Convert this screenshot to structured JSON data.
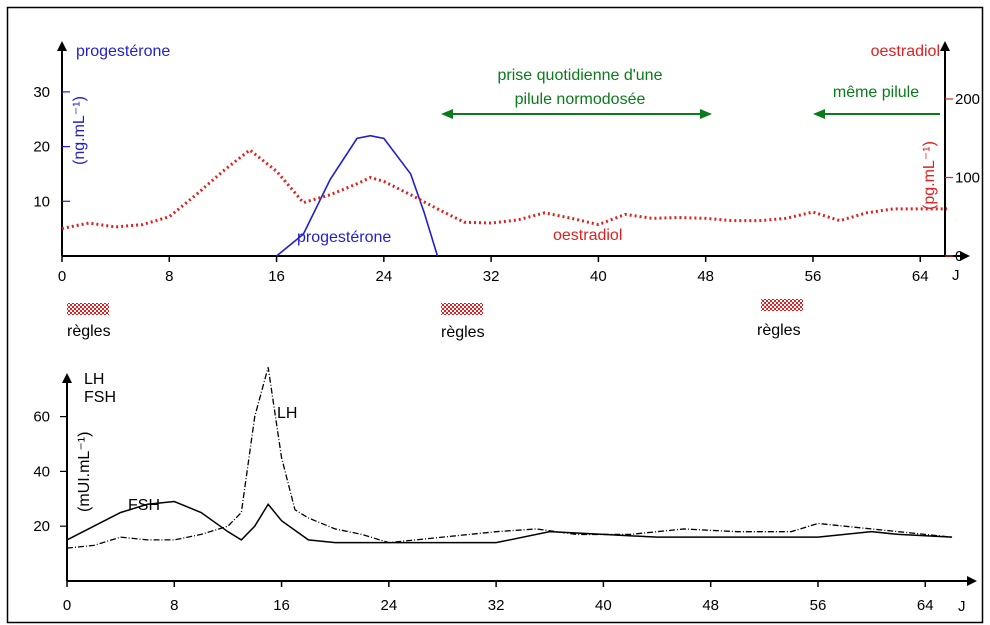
{
  "colors": {
    "progesterone": "#1f1fd0",
    "oestradiol": "#e02020",
    "annotation": "#0a7a1a",
    "axis": "#000000",
    "lh_fsh": "#000000"
  },
  "chart_data": [
    {
      "type": "line",
      "xlabel": "J",
      "xlim": [
        0,
        66
      ],
      "x_ticks": [
        "0",
        "8",
        "16",
        "24",
        "32",
        "40",
        "48",
        "56",
        "64"
      ],
      "left_axis": {
        "label": "progestérone",
        "unit": "(ng.mL⁻¹)",
        "ylim": [
          0,
          36
        ],
        "ticks": [
          "10",
          "20",
          "30"
        ]
      },
      "right_axis": {
        "label": "oestradiol",
        "unit": "(pg.mL⁻¹)",
        "ylim": [
          0,
          240
        ],
        "ticks": [
          "0",
          "100",
          "200"
        ]
      },
      "series": [
        {
          "name": "progestérone",
          "axis": "left",
          "x": [
            16,
            18,
            20,
            22,
            23,
            24,
            26,
            27,
            28
          ],
          "y": [
            0,
            4,
            14,
            21.5,
            22,
            21.5,
            15,
            8,
            0
          ]
        },
        {
          "name": "oestradiol",
          "axis": "right",
          "x": [
            0,
            2,
            4,
            6,
            8,
            10,
            12,
            14,
            16,
            18,
            20,
            22,
            23,
            24,
            26,
            28,
            30,
            32,
            34,
            36,
            38,
            40,
            42,
            44,
            46,
            48,
            50,
            52,
            54,
            56,
            58,
            60,
            62,
            64,
            66
          ],
          "y": [
            35,
            42,
            37,
            40,
            50,
            78,
            108,
            135,
            108,
            68,
            78,
            92,
            100,
            95,
            78,
            60,
            43,
            42,
            46,
            55,
            48,
            40,
            53,
            48,
            49,
            48,
            45,
            45,
            48,
            56,
            45,
            55,
            60,
            60,
            60
          ]
        }
      ],
      "annotations": {
        "prise": "prise quotidienne d'une pilule normodosée",
        "meme": "même pilule",
        "regles": [
          "règles",
          "règles",
          "règles"
        ]
      }
    },
    {
      "type": "line",
      "xlabel": "J",
      "xlim": [
        0,
        66
      ],
      "ylim": [
        0,
        80
      ],
      "x_ticks": [
        "0",
        "8",
        "16",
        "24",
        "32",
        "40",
        "48",
        "56",
        "64"
      ],
      "y_ticks": [
        "20",
        "40",
        "60"
      ],
      "y_labels": [
        "LH",
        "FSH"
      ],
      "y_unit": "(mUI.mL⁻¹)",
      "series": [
        {
          "name": "LH",
          "x": [
            0,
            2,
            4,
            6,
            8,
            10,
            12,
            13,
            14,
            15,
            16,
            17,
            18,
            20,
            22,
            24,
            28,
            32,
            35,
            38,
            42,
            46,
            50,
            54,
            56,
            58,
            62,
            66
          ],
          "y": [
            12,
            13,
            16,
            15,
            15,
            17,
            20,
            25,
            60,
            78,
            45,
            26,
            23,
            19,
            17,
            14,
            16,
            18,
            19,
            17,
            17,
            19,
            18,
            18,
            21,
            20,
            18,
            16
          ]
        },
        {
          "name": "FSH",
          "x": [
            0,
            2,
            4,
            6,
            8,
            10,
            12,
            13,
            14,
            15,
            16,
            18,
            20,
            24,
            28,
            32,
            36,
            40,
            44,
            48,
            52,
            56,
            60,
            62,
            66
          ],
          "y": [
            15,
            20,
            25,
            28,
            29,
            25,
            18,
            15,
            20,
            28,
            22,
            15,
            14,
            14,
            14,
            14,
            18,
            17,
            16,
            16,
            16,
            16,
            18,
            17,
            16
          ]
        }
      ]
    }
  ]
}
